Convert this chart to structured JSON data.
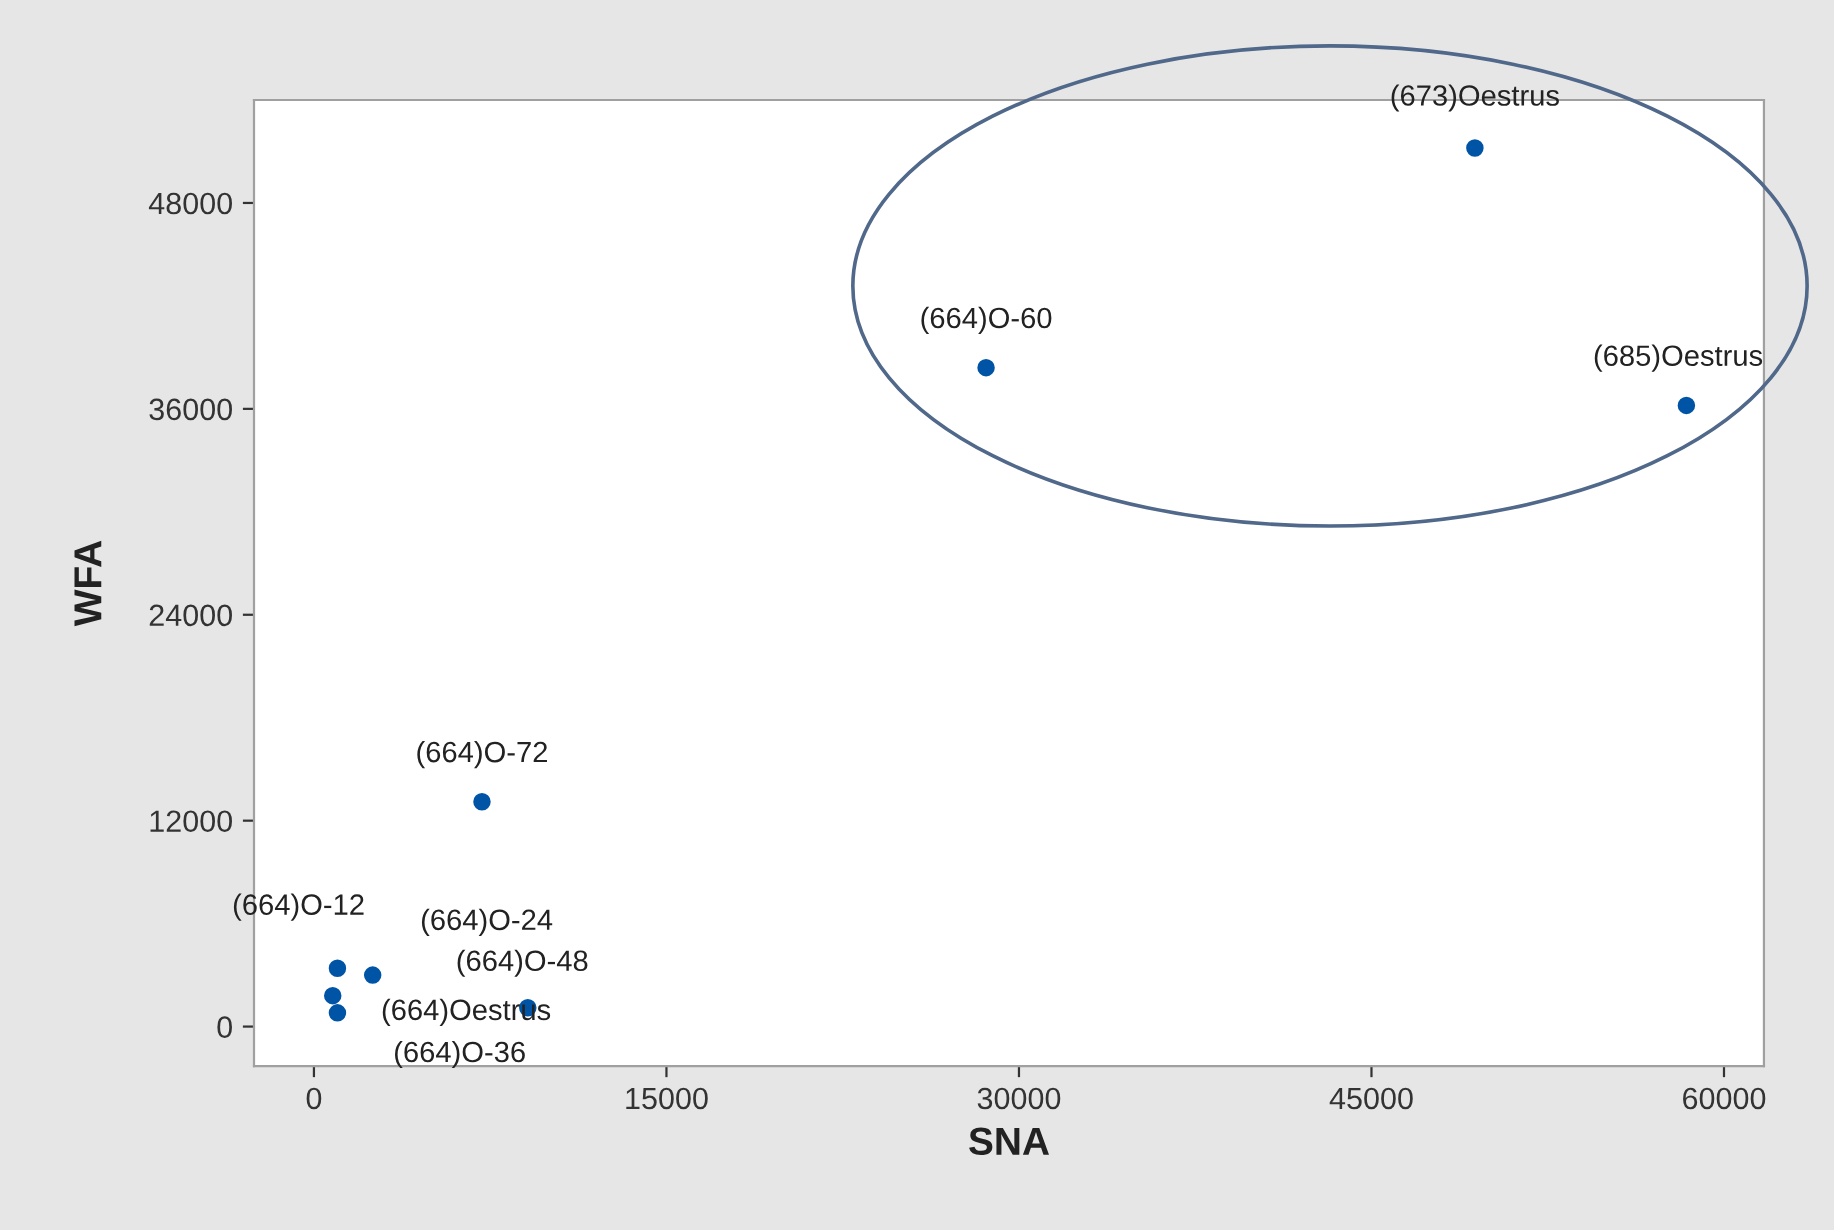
{
  "chart_data": {
    "type": "scatter",
    "xlabel": "SNA",
    "ylabel": "WFA",
    "x": [
      49400,
      28600,
      58400,
      7150,
      1000,
      2500,
      9100,
      800,
      1000
    ],
    "values": [
      51200,
      38400,
      36200,
      13100,
      3400,
      3000,
      1100,
      1800,
      800
    ],
    "color": "#0054a6",
    "marker": "circle",
    "xlim": [
      -2550,
      61700
    ],
    "ylim": [
      -2300,
      54000
    ],
    "xticks": [
      0,
      15000,
      30000,
      45000,
      60000
    ],
    "yticks": [
      0,
      12000,
      24000,
      36000,
      48000
    ],
    "grid": false,
    "annotations": [
      {
        "text": "(673)Oestrus",
        "x": 49400,
        "y": 51200
      },
      {
        "text": "(664)O-60",
        "x": 28600,
        "y": 38400
      },
      {
        "text": "(685)Oestrus",
        "x": 58400,
        "y": 36200
      },
      {
        "text": "(664)O-72",
        "x": 7150,
        "y": 13100
      },
      {
        "text": "(664)O-12",
        "x": 1000,
        "y": 3400
      },
      {
        "text": "(664)O-24",
        "x": 2500,
        "y": 3000
      },
      {
        "text": "(664)O-48",
        "x": 9100,
        "y": 1100
      },
      {
        "text": "(664)Oestrus",
        "x": 800,
        "y": 1800
      },
      {
        "text": "(664)O-36",
        "x": 1000,
        "y": 800
      }
    ]
  }
}
